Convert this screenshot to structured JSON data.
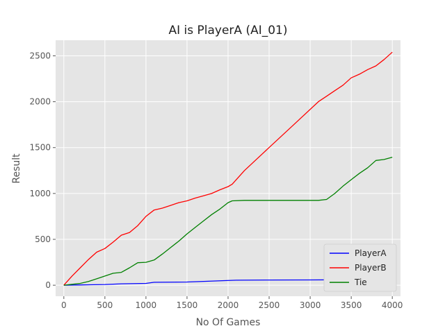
{
  "chart_data": {
    "type": "line",
    "title": "AI is PlayerA (AI_01)",
    "xlabel": "No Of Games",
    "ylabel": "Result",
    "xlim": [
      -100,
      4100
    ],
    "ylim": [
      -120,
      2670
    ],
    "xticks": [
      0,
      500,
      1000,
      1500,
      2000,
      2500,
      3000,
      3500,
      4000
    ],
    "yticks": [
      0,
      500,
      1000,
      1500,
      2000,
      2500
    ],
    "grid": true,
    "legend_position": "lower right",
    "series": [
      {
        "name": "PlayerA",
        "color": "#0000ff",
        "x": [
          0,
          200,
          500,
          700,
          1000,
          1100,
          1500,
          1700,
          2100,
          2500,
          3000,
          3500,
          4000
        ],
        "y": [
          0,
          3,
          8,
          15,
          20,
          32,
          35,
          42,
          55,
          57,
          58,
          60,
          62
        ]
      },
      {
        "name": "PlayerB",
        "color": "#ff0000",
        "x": [
          0,
          100,
          200,
          300,
          400,
          500,
          600,
          700,
          800,
          900,
          1000,
          1100,
          1200,
          1300,
          1400,
          1500,
          1600,
          1700,
          1800,
          1900,
          2000,
          2050,
          2200,
          2500,
          2800,
          3100,
          3200,
          3300,
          3400,
          3500,
          3600,
          3700,
          3800,
          3900,
          4000
        ],
        "y": [
          0,
          100,
          190,
          280,
          360,
          400,
          470,
          545,
          575,
          650,
          750,
          820,
          840,
          870,
          900,
          920,
          950,
          975,
          1000,
          1040,
          1075,
          1100,
          1250,
          1500,
          1750,
          2000,
          2060,
          2120,
          2180,
          2260,
          2300,
          2350,
          2390,
          2460,
          2540
        ]
      },
      {
        "name": "Tie",
        "color": "#008000",
        "x": [
          0,
          100,
          200,
          300,
          400,
          500,
          600,
          700,
          800,
          900,
          1000,
          1100,
          1200,
          1300,
          1400,
          1500,
          1600,
          1700,
          1800,
          1900,
          2000,
          2050,
          2200,
          2500,
          2800,
          3100,
          3200,
          3300,
          3400,
          3500,
          3600,
          3700,
          3800,
          3900,
          4000
        ],
        "y": [
          0,
          10,
          20,
          40,
          70,
          100,
          130,
          140,
          190,
          245,
          250,
          275,
          340,
          410,
          480,
          560,
          630,
          700,
          770,
          830,
          900,
          920,
          925,
          925,
          925,
          925,
          935,
          1000,
          1080,
          1150,
          1220,
          1280,
          1360,
          1370,
          1395
        ]
      }
    ]
  }
}
